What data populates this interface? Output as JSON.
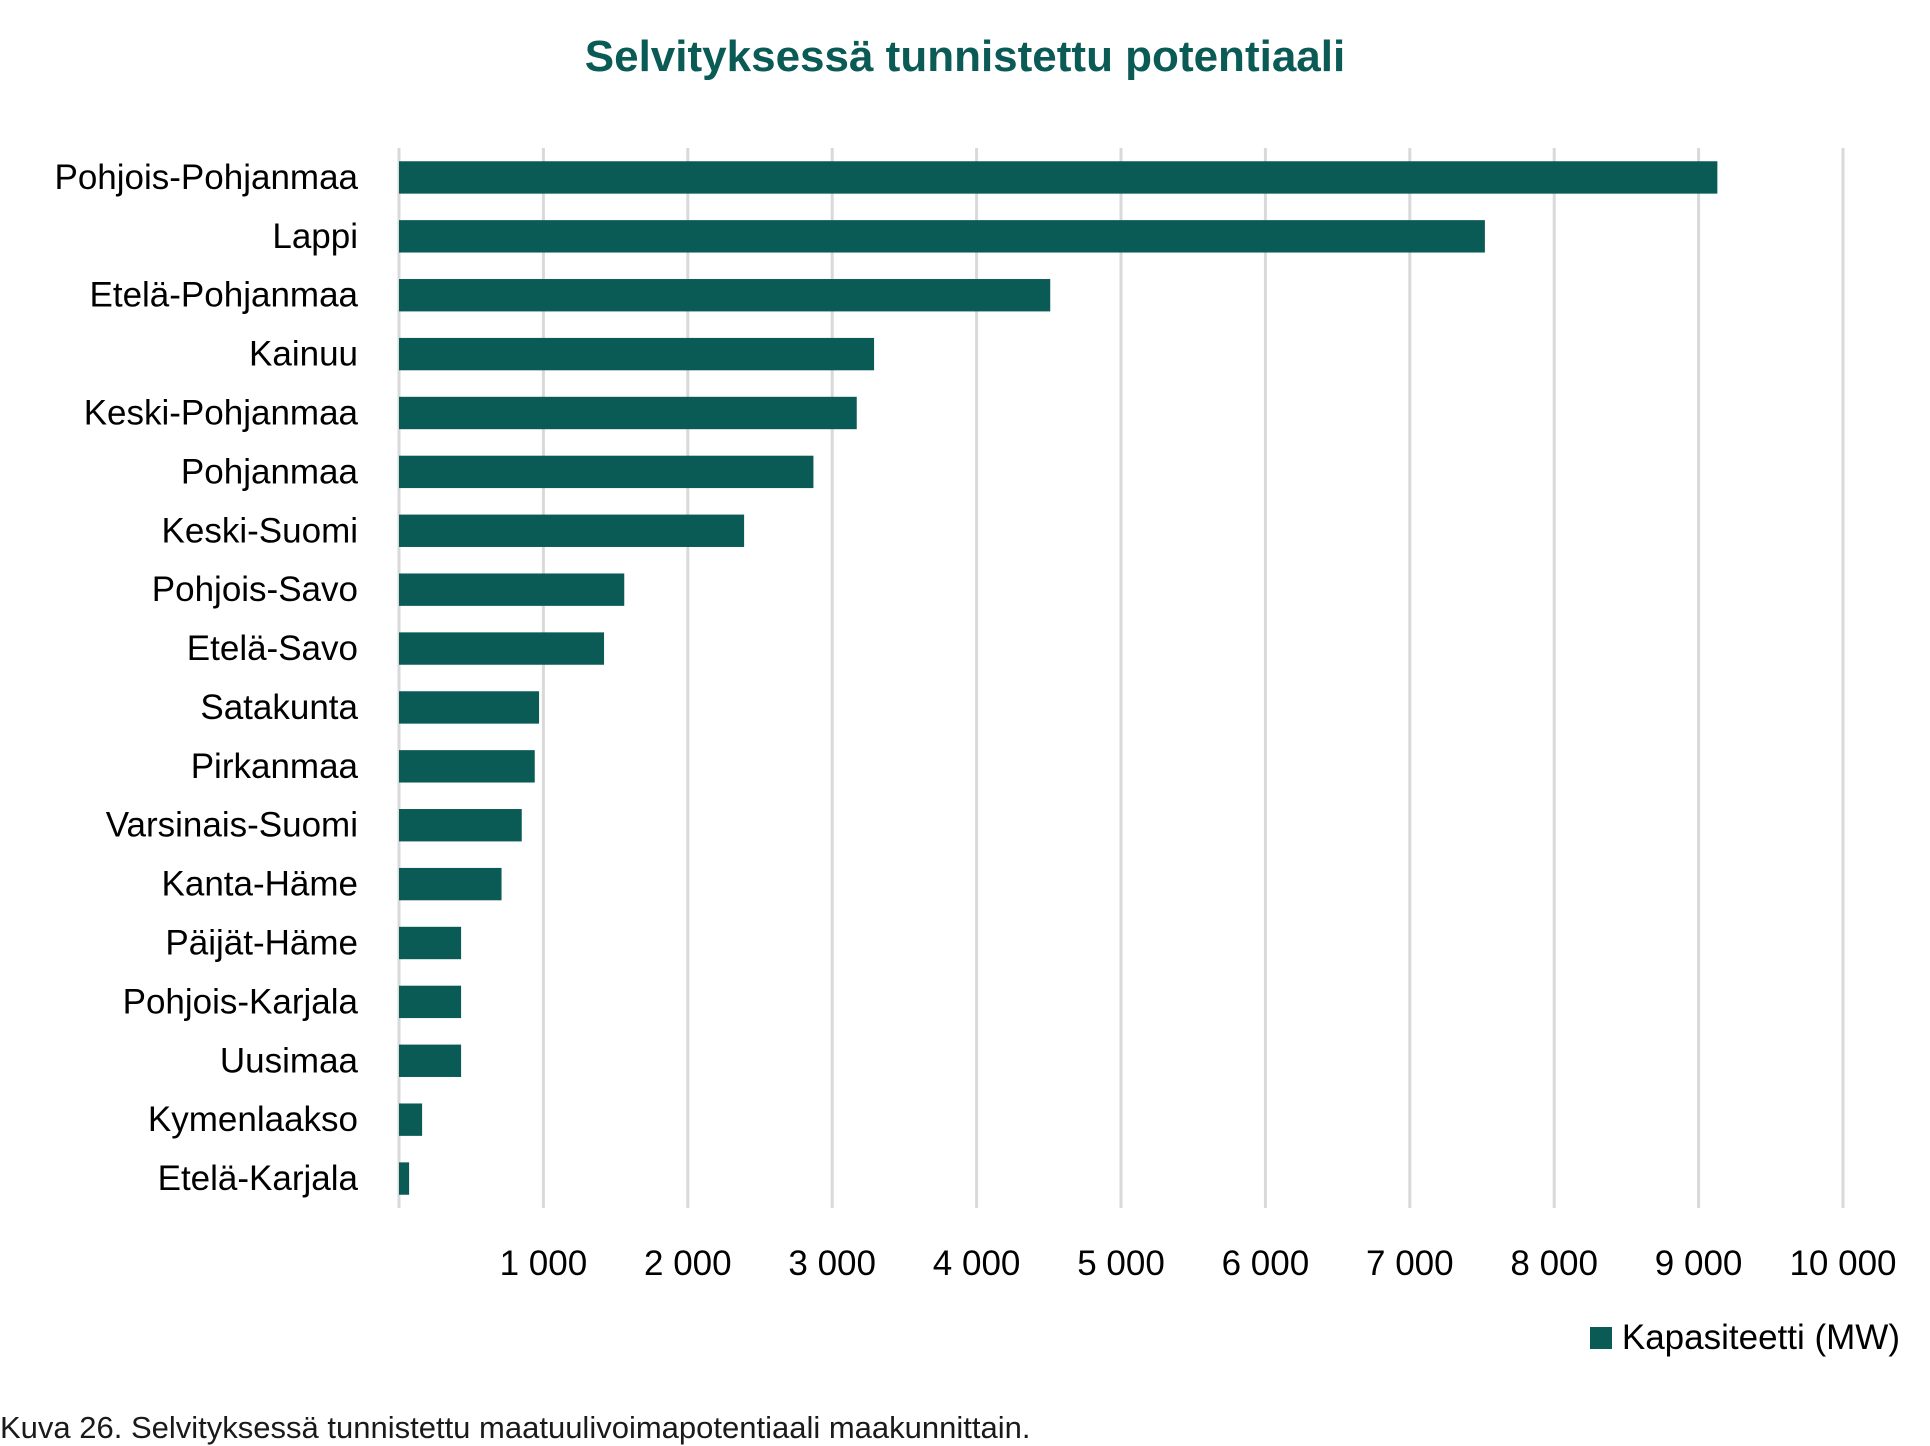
{
  "caption": "Kuva 26. Selvityksessä tunnistettu maatuulivoimapotentiaali maakunnittain.",
  "colors": {
    "bar": "#0a5a55",
    "title": "#0a5a55",
    "grid": "#d9d9d9"
  },
  "chart_data": {
    "type": "bar",
    "orientation": "horizontal",
    "title": "Selvityksessä tunnistettu potentiaali",
    "xlabel": "",
    "ylabel": "",
    "xlim": [
      0,
      10000
    ],
    "x_ticks": [
      1000,
      2000,
      3000,
      4000,
      5000,
      6000,
      7000,
      8000,
      9000,
      10000
    ],
    "x_tick_labels": [
      "1 000",
      "2 000",
      "3 000",
      "4 000",
      "5 000",
      "6 000",
      "7 000",
      "8 000",
      "9 000",
      "10 000"
    ],
    "grid": true,
    "legend_position": "bottom-right",
    "categories": [
      "Pohjois-Pohjanmaa",
      "Lappi",
      "Etelä-Pohjanmaa",
      "Kainuu",
      "Keski-Pohjanmaa",
      "Pohjanmaa",
      "Keski-Suomi",
      "Pohjois-Savo",
      "Etelä-Savo",
      "Satakunta",
      "Pirkanmaa",
      "Varsinais-Suomi",
      "Kanta-Häme",
      "Päijät-Häme",
      "Pohjois-Karjala",
      "Uusimaa",
      "Kymenlaakso",
      "Etelä-Karjala"
    ],
    "series": [
      {
        "name": "Kapasiteetti (MW)",
        "values": [
          9130,
          7520,
          4510,
          3290,
          3170,
          2870,
          2390,
          1560,
          1420,
          970,
          940,
          850,
          710,
          430,
          430,
          430,
          160,
          70
        ]
      }
    ]
  }
}
